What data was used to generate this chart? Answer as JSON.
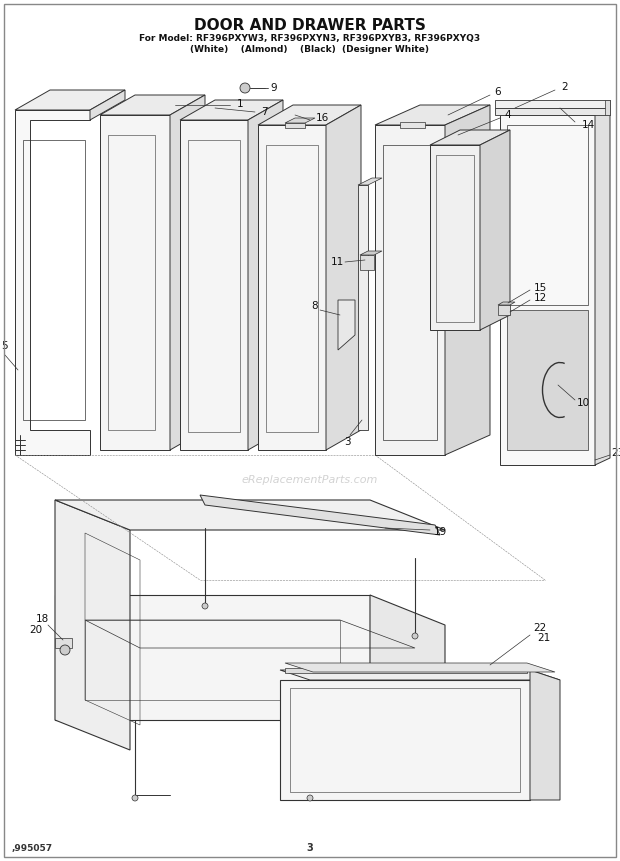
{
  "title_line1": "DOOR AND DRAWER PARTS",
  "title_line2": "For Model: RF396PXYW3, RF396PXYN3, RF396PXYB3, RF396PXYQ3",
  "title_line3": "(White)    (Almond)    (Black)  (Designer White)",
  "watermark": "eReplacementParts.com",
  "bottom_left": ",995057",
  "bottom_center": "3",
  "bg_color": "#ffffff",
  "lc": "#333333",
  "lc_light": "#888888"
}
